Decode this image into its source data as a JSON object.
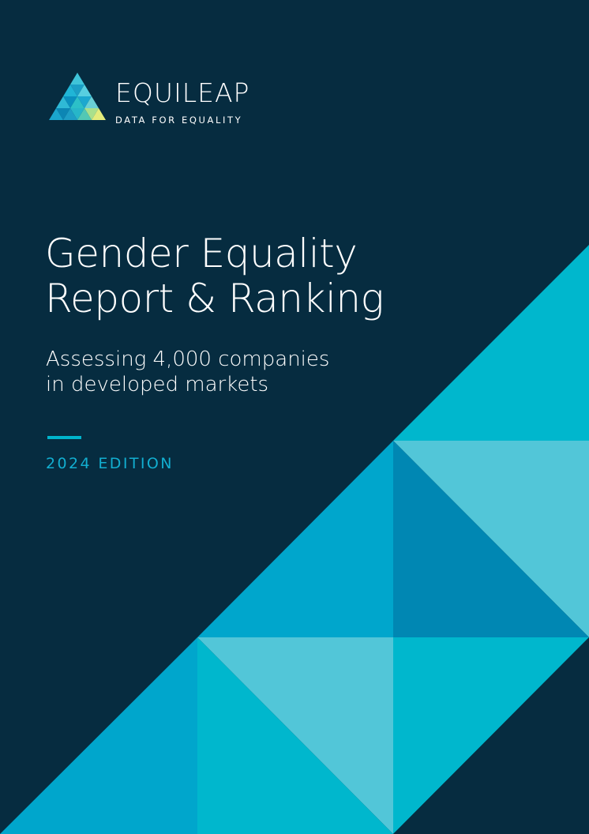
{
  "brand": {
    "name": "EQUILEAP",
    "tagline": "DATA FOR EQUALITY",
    "logo_icon": "triangle-mosaic-logo"
  },
  "cover": {
    "title_line1": "Gender Equality",
    "title_line2": "Report & Ranking",
    "subtitle_line1": "Assessing 4,000 companies",
    "subtitle_line2": "in developed markets",
    "edition": "2024 EDITION"
  },
  "colors": {
    "background": "#062c40",
    "accent": "#00b4cc",
    "triangle_light": "#52c6d8",
    "triangle_mid": "#00a6cc",
    "triangle_dark": "#0087b3",
    "triangle_bright": "#00b7cd"
  }
}
